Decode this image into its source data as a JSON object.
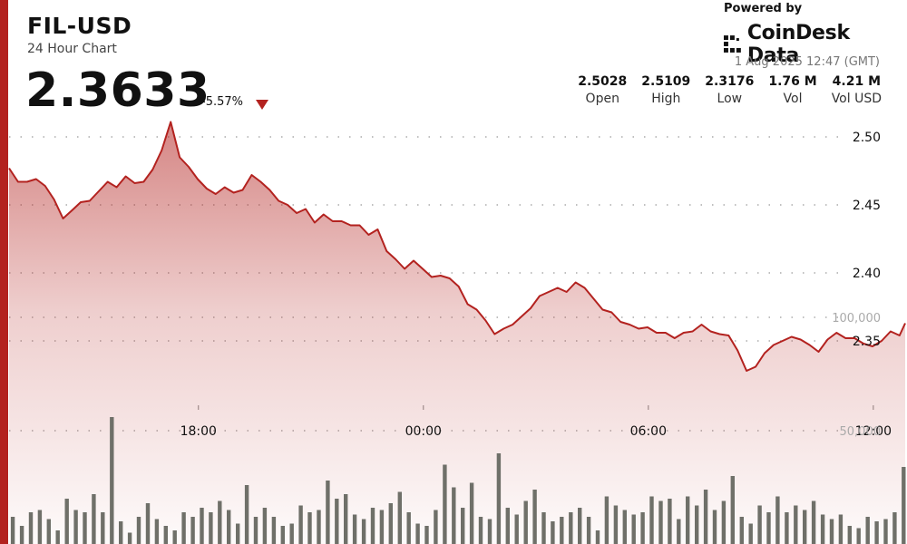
{
  "header": {
    "pair": "FIL-USD",
    "subtitle": "24 Hour Chart",
    "price": "2.3633",
    "change": "-5.57%"
  },
  "branding": {
    "powered_by": "Powered by",
    "name": "CoinDesk Data"
  },
  "timestamp": "1 Aug 2025 12:47 (GMT)",
  "stats": [
    {
      "value": "2.5028",
      "label": "Open"
    },
    {
      "value": "2.5109",
      "label": "High"
    },
    {
      "value": "2.3176",
      "label": "Low"
    },
    {
      "value": "1.76 M",
      "label": "Vol"
    },
    {
      "value": "4.21 M",
      "label": "Vol USD"
    }
  ],
  "colors": {
    "accent": "#b3221f",
    "line": "#b3221f",
    "volume_bar": "#6f7069"
  },
  "chart_data": {
    "type": "area",
    "x_ticks": [
      "18:00",
      "00:00",
      "06:00",
      "12:00"
    ],
    "x_tick_hours": [
      18,
      24,
      30,
      36
    ],
    "x_range_hours": [
      12.95,
      36.85
    ],
    "price": {
      "ylim": [
        2.31,
        2.51
      ],
      "y_ticks": [
        2.5,
        2.45,
        2.4,
        2.35
      ],
      "y_tick_labels": [
        "2.50",
        "2.45",
        "2.40",
        "2.35"
      ],
      "times": [
        12.95,
        13.19,
        13.43,
        13.67,
        13.91,
        14.15,
        14.39,
        14.63,
        14.86,
        15.1,
        15.34,
        15.58,
        15.82,
        16.06,
        16.3,
        16.54,
        16.78,
        17.02,
        17.26,
        17.5,
        17.74,
        17.98,
        18.22,
        18.46,
        18.7,
        18.94,
        19.18,
        19.42,
        19.66,
        19.9,
        20.14,
        20.38,
        20.62,
        20.86,
        21.1,
        21.34,
        21.58,
        21.82,
        22.06,
        22.3,
        22.54,
        22.78,
        23.02,
        23.26,
        23.5,
        23.74,
        23.98,
        24.22,
        24.46,
        24.7,
        24.94,
        25.18,
        25.42,
        25.66,
        25.9,
        26.14,
        26.38,
        26.62,
        26.86,
        27.1,
        27.34,
        27.58,
        27.82,
        28.06,
        28.3,
        28.54,
        28.78,
        29.02,
        29.26,
        29.5,
        29.74,
        29.98,
        30.22,
        30.46,
        30.7,
        30.94,
        31.18,
        31.42,
        31.66,
        31.9,
        32.14,
        32.38,
        32.62,
        32.86,
        33.1,
        33.34,
        33.58,
        33.82,
        34.06,
        34.3,
        34.54,
        34.78,
        35.02,
        35.26,
        35.5,
        35.74,
        35.98,
        36.22,
        36.46,
        36.7,
        36.85
      ],
      "values": [
        2.477,
        2.467,
        2.467,
        2.469,
        2.464,
        2.454,
        2.44,
        2.446,
        2.452,
        2.453,
        2.46,
        2.467,
        2.463,
        2.471,
        2.466,
        2.467,
        2.476,
        2.49,
        2.511,
        2.485,
        2.478,
        2.469,
        2.462,
        2.458,
        2.463,
        2.459,
        2.461,
        2.472,
        2.467,
        2.461,
        2.453,
        2.45,
        2.444,
        2.447,
        2.437,
        2.443,
        2.438,
        2.438,
        2.435,
        2.435,
        2.428,
        2.432,
        2.416,
        2.41,
        2.403,
        2.409,
        2.403,
        2.397,
        2.398,
        2.396,
        2.39,
        2.377,
        2.373,
        2.365,
        2.355,
        2.359,
        2.362,
        2.368,
        2.374,
        2.383,
        2.386,
        2.389,
        2.386,
        2.393,
        2.389,
        2.381,
        2.373,
        2.371,
        2.364,
        2.362,
        2.359,
        2.36,
        2.356,
        2.356,
        2.352,
        2.356,
        2.357,
        2.362,
        2.357,
        2.355,
        2.354,
        2.343,
        2.328,
        2.331,
        2.341,
        2.347,
        2.35,
        2.353,
        2.351,
        2.347,
        2.342,
        2.351,
        2.356,
        2.352,
        2.352,
        2.348,
        2.346,
        2.35,
        2.357,
        2.354,
        2.363
      ]
    },
    "volume": {
      "ylim": [
        0,
        130000
      ],
      "y_ticks": [
        100000,
        50000
      ],
      "y_tick_labels": [
        "100,000",
        "50,000"
      ],
      "times": [
        13.05,
        13.29,
        13.53,
        13.77,
        14.01,
        14.25,
        14.49,
        14.73,
        14.97,
        15.21,
        15.45,
        15.69,
        15.93,
        16.17,
        16.41,
        16.65,
        16.89,
        17.13,
        17.37,
        17.61,
        17.85,
        18.09,
        18.33,
        18.57,
        18.81,
        19.05,
        19.29,
        19.53,
        19.77,
        20.01,
        20.25,
        20.49,
        20.73,
        20.97,
        21.21,
        21.45,
        21.69,
        21.93,
        22.17,
        22.41,
        22.65,
        22.89,
        23.13,
        23.37,
        23.61,
        23.85,
        24.09,
        24.33,
        24.57,
        24.81,
        25.05,
        25.29,
        25.53,
        25.77,
        26.01,
        26.25,
        26.49,
        26.73,
        26.97,
        27.21,
        27.45,
        27.69,
        27.93,
        28.17,
        28.41,
        28.65,
        28.89,
        29.13,
        29.37,
        29.61,
        29.85,
        30.09,
        30.33,
        30.57,
        30.81,
        31.05,
        31.29,
        31.53,
        31.77,
        32.01,
        32.25,
        32.49,
        32.73,
        32.97,
        33.21,
        33.45,
        33.69,
        33.93,
        34.17,
        34.41,
        34.65,
        34.89,
        35.13,
        35.37,
        35.61,
        35.85,
        36.09,
        36.33,
        36.57,
        36.81
      ],
      "values": [
        12000,
        8000,
        14000,
        15000,
        11000,
        6000,
        20000,
        15000,
        14000,
        22000,
        14000,
        56000,
        10000,
        5000,
        12000,
        18000,
        11000,
        8000,
        6000,
        14000,
        12000,
        16000,
        14000,
        19000,
        15000,
        9000,
        26000,
        12000,
        16000,
        12000,
        8000,
        9000,
        17000,
        14000,
        15000,
        28000,
        20000,
        22000,
        13000,
        11000,
        16000,
        15000,
        18000,
        23000,
        14000,
        9000,
        8000,
        15000,
        35000,
        25000,
        16000,
        27000,
        12000,
        11000,
        40000,
        16000,
        13000,
        19000,
        24000,
        14000,
        10000,
        12000,
        14000,
        16000,
        12000,
        6000,
        21000,
        17000,
        15000,
        13000,
        14000,
        21000,
        19000,
        20000,
        11000,
        21000,
        17000,
        24000,
        15000,
        19000,
        30000,
        12000,
        9000,
        17000,
        14000,
        21000,
        14000,
        17000,
        15000,
        19000,
        13000,
        11000,
        13000,
        8000,
        7000,
        12000,
        10000,
        11000,
        14000,
        34000
      ]
    }
  }
}
